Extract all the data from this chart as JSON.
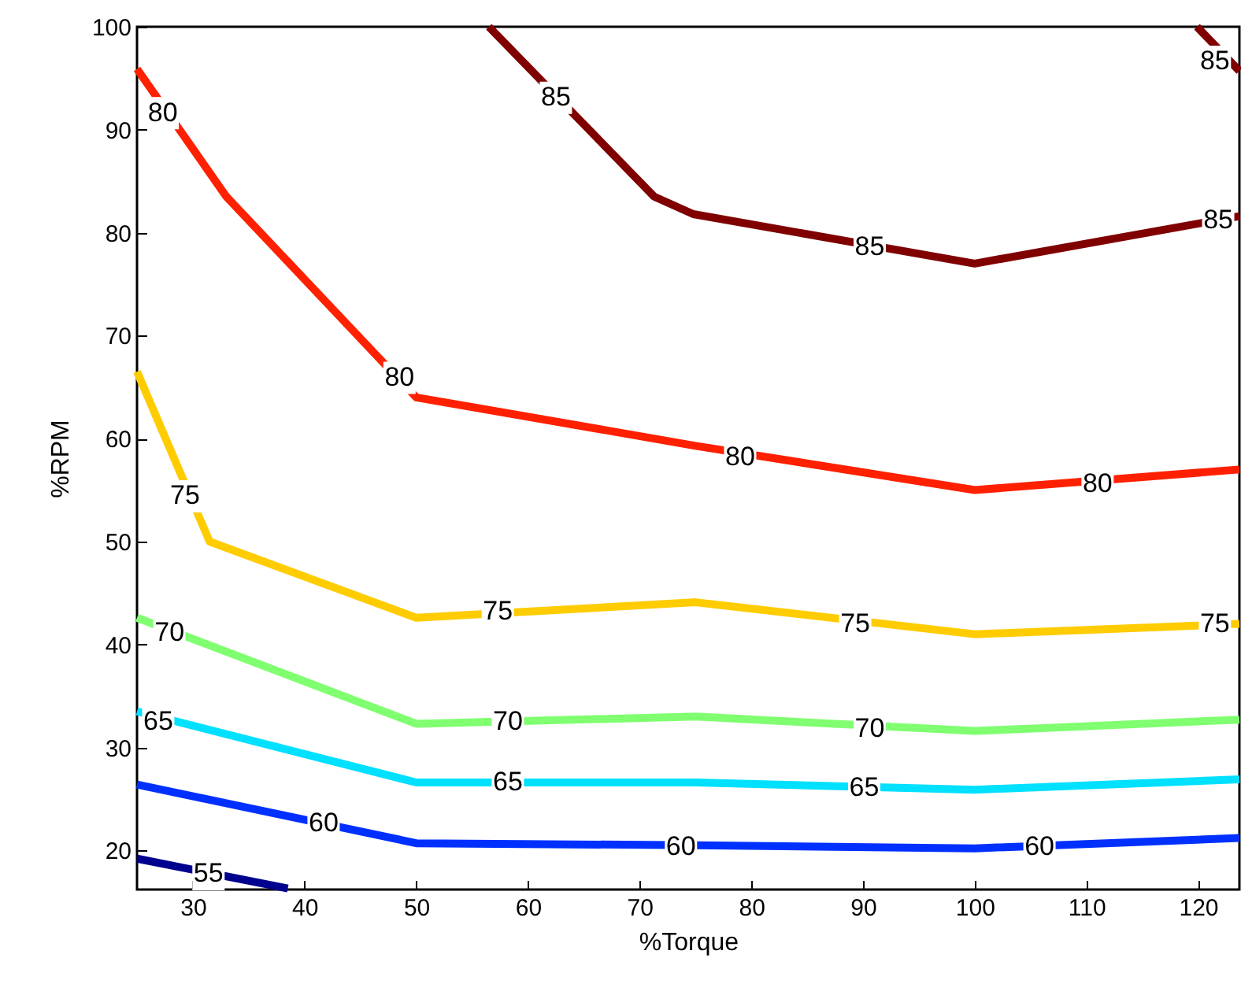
{
  "chart_data": {
    "type": "line",
    "xlabel": "%Torque",
    "ylabel": "%RPM",
    "xlim": [
      25,
      123.7
    ],
    "ylim": [
      16.2,
      100
    ],
    "xticks": [
      30,
      40,
      50,
      60,
      70,
      80,
      90,
      100,
      110,
      120
    ],
    "yticks": [
      20,
      30,
      40,
      50,
      60,
      70,
      80,
      90,
      100
    ],
    "grid": false,
    "line_style": "solid",
    "marker": "none",
    "series": [
      {
        "color": "#00008f",
        "x": [
          25,
          38.5
        ],
        "values": [
          19.2,
          16.3
        ]
      },
      {
        "color": "#0030ff",
        "x": [
          25,
          50,
          75,
          100,
          123.7
        ],
        "values": [
          26.4,
          20.7,
          20.5,
          20.2,
          21.2
        ]
      },
      {
        "color": "#00e0ff",
        "x": [
          25,
          50,
          75,
          100,
          123.7
        ],
        "values": [
          33.5,
          26.6,
          26.6,
          25.9,
          26.9
        ]
      },
      {
        "color": "#80ff70",
        "x": [
          25,
          50,
          75,
          100,
          123.7
        ],
        "values": [
          42.6,
          32.3,
          33,
          31.6,
          32.7
        ]
      },
      {
        "color": "#ffcc00",
        "x": [
          25,
          31.5,
          50,
          75,
          100,
          123.7
        ],
        "values": [
          66.5,
          50,
          42.6,
          44.1,
          41,
          42
        ]
      },
      {
        "color": "#ff2000",
        "x": [
          25,
          33,
          50,
          75,
          100,
          123.7
        ],
        "values": [
          95.9,
          83.5,
          64,
          59.3,
          55,
          57
        ]
      },
      {
        "color": "#800000",
        "x": [
          56.5,
          71.3,
          74.8,
          100,
          123.7,
          121,
          119.9,
          123.7
        ],
        "values": [
          100,
          83.5,
          81.8,
          77,
          81.6,
          null,
          100,
          95.7
        ]
      }
    ],
    "annotations": [
      {
        "text": "55",
        "x": 31.4,
        "y": 17.7
      },
      {
        "text": "60",
        "x": 41.7,
        "y": 22.6
      },
      {
        "text": "60",
        "x": 73.7,
        "y": 20.3
      },
      {
        "text": "60",
        "x": 105.8,
        "y": 20.3
      },
      {
        "text": "65",
        "x": 26.9,
        "y": 32.5
      },
      {
        "text": "65",
        "x": 58.2,
        "y": 26.6
      },
      {
        "text": "65",
        "x": 90.1,
        "y": 26.1
      },
      {
        "text": "70",
        "x": 27.9,
        "y": 41.1
      },
      {
        "text": "70",
        "x": 58.2,
        "y": 32.5
      },
      {
        "text": "70",
        "x": 90.6,
        "y": 31.8
      },
      {
        "text": "75",
        "x": 29.3,
        "y": 54.4
      },
      {
        "text": "75",
        "x": 57.3,
        "y": 43.2
      },
      {
        "text": "75",
        "x": 89.3,
        "y": 42
      },
      {
        "text": "75",
        "x": 121.5,
        "y": 42
      },
      {
        "text": "80",
        "x": 27.3,
        "y": 91.6
      },
      {
        "text": "80",
        "x": 48.5,
        "y": 65.9
      },
      {
        "text": "80",
        "x": 79,
        "y": 58.2
      },
      {
        "text": "80",
        "x": 111,
        "y": 55.6
      },
      {
        "text": "85",
        "x": 62.5,
        "y": 93.1
      },
      {
        "text": "85",
        "x": 90.6,
        "y": 78.6
      },
      {
        "text": "85",
        "x": 121.8,
        "y": 81.2
      },
      {
        "text": "85",
        "x": 121.5,
        "y": 96.6
      }
    ]
  }
}
